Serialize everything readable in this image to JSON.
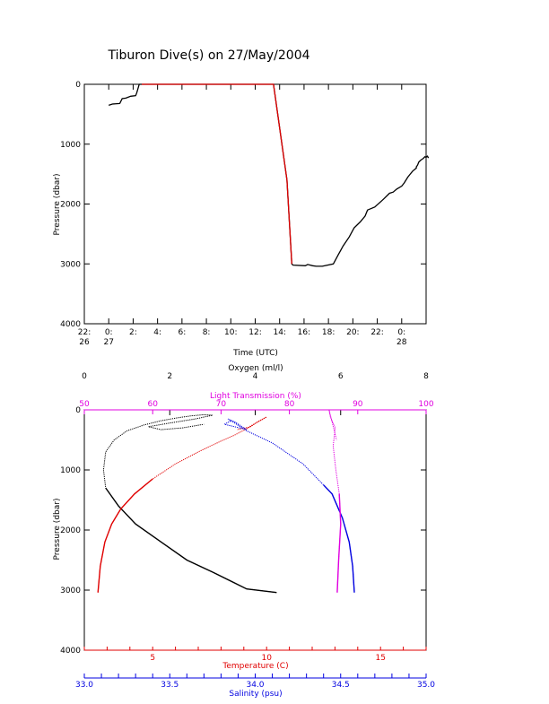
{
  "page_title": "Tiburon Dive(s) on 27/May/2004",
  "colors": {
    "black": "#000000",
    "red": "#e00000",
    "blue": "#0000e0",
    "magenta": "#e000e0",
    "depth_trace": "#000000",
    "time_axis_red": "#e00000"
  },
  "chart_data": [
    {
      "type": "line",
      "title": "Tiburon Dive(s) on 27/May/2004",
      "xlabel": "Time (UTC)",
      "ylabel": "Pressure (dbar)",
      "x_unit": "hours since 22:00 on 26 May",
      "xlim": [
        0,
        28
      ],
      "ylim": [
        4000,
        0
      ],
      "x_ticks": [
        {
          "v": 0,
          "l1": "22:",
          "l2": "26"
        },
        {
          "v": 2,
          "l1": "0:",
          "l2": "27"
        },
        {
          "v": 4,
          "l1": "2:",
          "l2": ""
        },
        {
          "v": 6,
          "l1": "4:",
          "l2": ""
        },
        {
          "v": 8,
          "l1": "6:",
          "l2": ""
        },
        {
          "v": 10,
          "l1": "8:",
          "l2": ""
        },
        {
          "v": 12,
          "l1": "10:",
          "l2": ""
        },
        {
          "v": 14,
          "l1": "12:",
          "l2": ""
        },
        {
          "v": 16,
          "l1": "14:",
          "l2": ""
        },
        {
          "v": 18,
          "l1": "16:",
          "l2": ""
        },
        {
          "v": 20,
          "l1": "18:",
          "l2": ""
        },
        {
          "v": 22,
          "l1": "20:",
          "l2": ""
        },
        {
          "v": 24,
          "l1": "22:",
          "l2": ""
        },
        {
          "v": 26,
          "l1": "0:",
          "l2": "28"
        }
      ],
      "y_ticks": [
        0,
        1000,
        2000,
        3000,
        4000
      ],
      "series": [
        {
          "color": "#000000",
          "x": [
            2.0,
            2.3,
            2.9,
            3.1,
            3.4,
            3.8,
            4.2,
            4.3,
            4.5,
            4.7,
            15.5,
            16.6,
            17.0,
            17.1,
            18.1,
            18.3,
            18.7,
            19.0,
            19.5,
            20.4,
            20.8,
            21.2,
            21.7,
            22.1,
            22.6,
            23.0,
            23.2,
            23.8,
            24.5,
            25.0,
            25.3,
            25.6,
            26.0,
            26.2,
            26.5,
            26.7,
            26.9,
            27.2,
            27.2,
            27.3,
            27.4,
            27.5,
            27.6,
            27.7,
            27.8,
            27.9,
            28.0,
            28.1,
            28.2
          ],
          "y": [
            350,
            330,
            320,
            240,
            230,
            200,
            190,
            140,
            0,
            0,
            0,
            1600,
            3000,
            3020,
            3030,
            3010,
            3030,
            3040,
            3040,
            3000,
            2850,
            2700,
            2550,
            2400,
            2300,
            2200,
            2100,
            2050,
            1920,
            1820,
            1800,
            1750,
            1700,
            1650,
            1550,
            1500,
            1450,
            1400,
            1380,
            1350,
            1300,
            1280,
            1260,
            1250,
            1230,
            1210,
            1220,
            1200,
            1230
          ]
        },
        {
          "color": "#e00000",
          "x": [
            4.7,
            15.5,
            16.6,
            17.0
          ],
          "y": [
            0,
            0,
            1600,
            3000
          ]
        }
      ]
    },
    {
      "type": "line",
      "ylabel": "Pressure (dbar)",
      "ylim": [
        4000,
        0
      ],
      "y_ticks": [
        0,
        1000,
        2000,
        3000,
        4000
      ],
      "axes": {
        "oxygen": {
          "label": "Oxygen (ml/l)",
          "range": [
            0,
            8
          ],
          "ticks": [
            "0",
            "2",
            "4",
            "6",
            "8"
          ],
          "color": "#000000"
        },
        "light": {
          "label": "Light Transmission (%)",
          "range": [
            50,
            100
          ],
          "ticks": [
            "50",
            "60",
            "70",
            "80",
            "90",
            "100"
          ],
          "color": "#e000e0"
        },
        "temperature": {
          "label": "Temperature (C)",
          "range": [
            2,
            17
          ],
          "ticks": [
            "5",
            "10",
            "15"
          ],
          "tick_values": [
            5,
            10,
            15
          ],
          "color": "#e00000"
        },
        "salinity": {
          "label": "Salinity (psu)",
          "range": [
            33.0,
            35.0
          ],
          "ticks": [
            "33.0",
            "33.5",
            "34.0",
            "34.5",
            "35.0"
          ],
          "color": "#0000e0"
        }
      },
      "series": [
        {
          "name": "Oxygen",
          "axis": "oxygen",
          "color": "#000000",
          "x": [
            4.5,
            3.8,
            3.0,
            2.4,
            1.8,
            1.2,
            0.8,
            0.5,
            0.45,
            0.5,
            0.7,
            1.0,
            1.4,
            1.8,
            2.2,
            2.5,
            2.8,
            3.0,
            2.6,
            2.0,
            1.5,
            1.8,
            2.3,
            2.8
          ],
          "y": [
            3040,
            2980,
            2700,
            2500,
            2200,
            1900,
            1600,
            1300,
            1000,
            700,
            500,
            350,
            250,
            180,
            130,
            100,
            80,
            90,
            150,
            220,
            280,
            330,
            300,
            240
          ]
        },
        {
          "name": "Temperature",
          "axis": "temperature",
          "color": "#e00000",
          "x": [
            2.6,
            2.7,
            2.9,
            3.2,
            3.6,
            4.2,
            5.0,
            6.0,
            7.0,
            8.0,
            8.6,
            9.0,
            9.3,
            9.6,
            10.0,
            9.2,
            8.7
          ],
          "y": [
            3040,
            2600,
            2200,
            1900,
            1650,
            1400,
            1150,
            900,
            700,
            520,
            420,
            340,
            280,
            200,
            120,
            290,
            330
          ]
        },
        {
          "name": "Salinity",
          "axis": "salinity",
          "color": "#0000e0",
          "x": [
            34.58,
            34.57,
            34.55,
            34.51,
            34.45,
            34.4,
            34.28,
            34.1,
            33.95,
            33.88,
            33.84,
            33.88,
            33.95,
            33.82,
            33.86
          ],
          "y": [
            3040,
            2600,
            2200,
            1800,
            1400,
            1250,
            900,
            550,
            350,
            220,
            150,
            200,
            330,
            240,
            180
          ]
        },
        {
          "name": "Light Transmission",
          "axis": "light",
          "color": "#e000e0",
          "x": [
            87.0,
            87.2,
            87.5,
            87.3,
            86.8,
            86.4,
            86.7,
            86.0,
            85.8,
            86.9
          ],
          "y": [
            3040,
            2500,
            1900,
            1400,
            1000,
            600,
            300,
            120,
            0,
            500
          ]
        }
      ]
    }
  ]
}
